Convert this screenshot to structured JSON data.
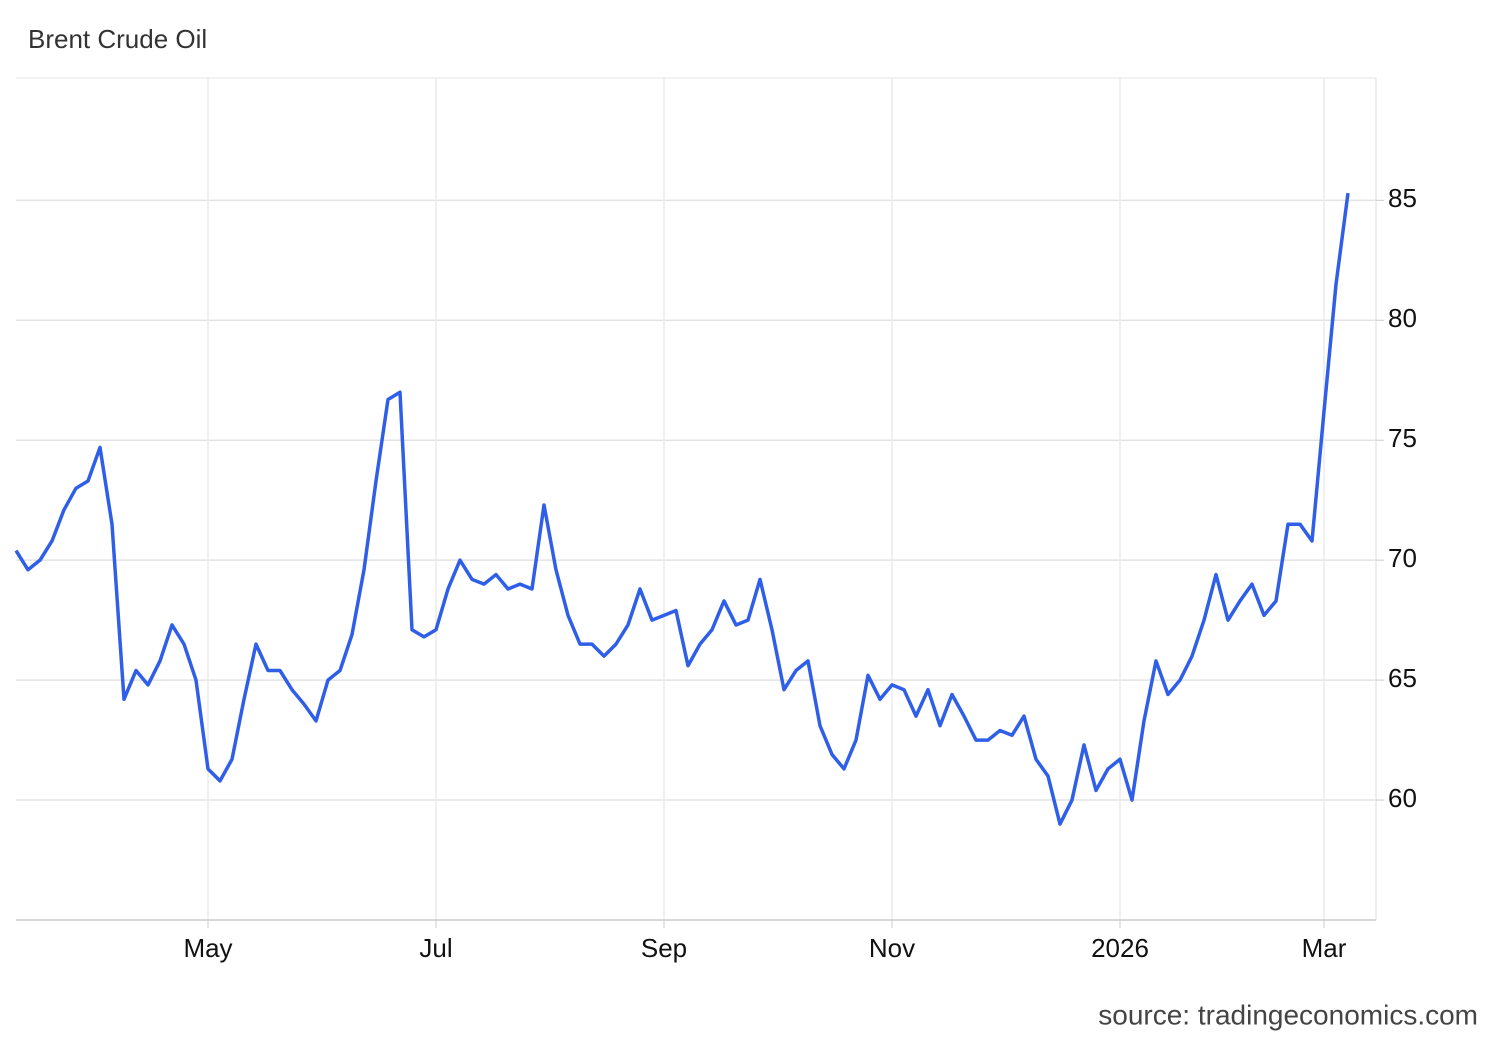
{
  "chart_data": {
    "type": "line",
    "title": "Brent Crude Oil",
    "source": "source: tradingeconomics.com",
    "categories": [
      null,
      null,
      null,
      null,
      null,
      null,
      null,
      null,
      null,
      null,
      null,
      null,
      null,
      null,
      null,
      null,
      "May",
      null,
      null,
      null,
      null,
      null,
      null,
      null,
      null,
      null,
      null,
      null,
      null,
      null,
      null,
      null,
      null,
      null,
      null,
      "Jul",
      null,
      null,
      null,
      null,
      null,
      null,
      null,
      null,
      null,
      null,
      null,
      null,
      null,
      null,
      null,
      null,
      null,
      null,
      "Sep",
      null,
      null,
      null,
      null,
      null,
      null,
      null,
      null,
      null,
      null,
      null,
      null,
      null,
      null,
      null,
      null,
      null,
      null,
      "Nov",
      null,
      null,
      null,
      null,
      null,
      null,
      null,
      null,
      null,
      null,
      null,
      null,
      null,
      null,
      null,
      null,
      null,
      null,
      "2026",
      null,
      null,
      null,
      null,
      null,
      null,
      null,
      null,
      null,
      null,
      null,
      null,
      null,
      null,
      null,
      null,
      "Mar",
      null,
      null
    ],
    "values": [
      70.4,
      69.6,
      70,
      70.8,
      72.1,
      73,
      73.3,
      74.7,
      71.5,
      64.2,
      65.4,
      64.8,
      65.8,
      67.3,
      66.5,
      65,
      61.3,
      60.8,
      61.7,
      64.2,
      66.5,
      65.4,
      65.4,
      64.6,
      64,
      63.3,
      65,
      65.4,
      66.9,
      69.6,
      73.3,
      76.7,
      77,
      67.1,
      66.8,
      67.1,
      68.8,
      70,
      69.2,
      69,
      69.4,
      68.8,
      69,
      68.8,
      72.3,
      69.6,
      67.7,
      66.5,
      66.5,
      66,
      66.5,
      67.3,
      68.8,
      67.5,
      67.7,
      67.9,
      65.6,
      66.5,
      67.1,
      68.3,
      67.3,
      67.5,
      69.2,
      67.1,
      64.6,
      65.4,
      65.8,
      63.1,
      61.9,
      61.3,
      62.5,
      65.2,
      64.2,
      64.8,
      64.6,
      63.5,
      64.6,
      63.1,
      64.4,
      63.5,
      62.5,
      62.5,
      62.9,
      62.7,
      63.5,
      61.7,
      61,
      59,
      60,
      62.3,
      60.4,
      61.3,
      61.7,
      60,
      63.3,
      65.8,
      64.4,
      65,
      66,
      67.5,
      69.4,
      67.5,
      68.3,
      69,
      67.7,
      68.3,
      71.5,
      71.5,
      70.8,
      76.2,
      81.5,
      85.3
    ],
    "color": "#2f5fe8",
    "ylim": [
      55,
      90.1
    ],
    "yticks": [
      60,
      65,
      70,
      75,
      80,
      85
    ],
    "grid": true
  }
}
